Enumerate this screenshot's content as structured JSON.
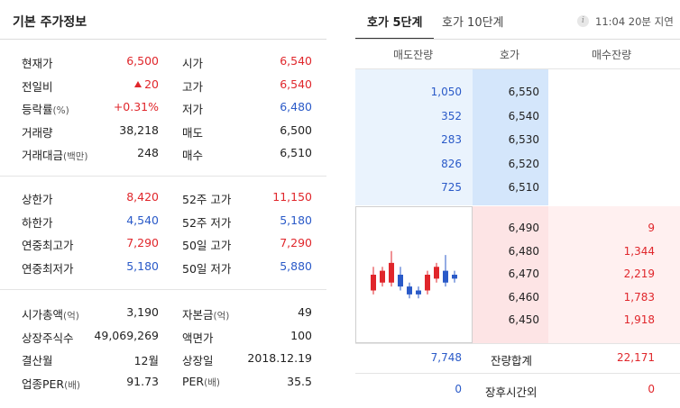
{
  "left_panel": {
    "title": "기본 주가정보",
    "section1": [
      {
        "label": "현재가",
        "label_unit": "",
        "value": "6,500",
        "value_color": "red",
        "label2": "시가",
        "label2_unit": "",
        "value2": "6,540",
        "value2_color": "red"
      },
      {
        "label": "전일비",
        "label_unit": "",
        "value": "20",
        "value_color": "red",
        "value_icon": "up-triangle-icon",
        "label2": "고가",
        "label2_unit": "",
        "value2": "6,540",
        "value2_color": "red"
      },
      {
        "label": "등락률",
        "label_unit": "(%)",
        "value": "+0.31%",
        "value_color": "red",
        "label2": "저가",
        "label2_unit": "",
        "value2": "6,480",
        "value2_color": "blue"
      },
      {
        "label": "거래량",
        "label_unit": "",
        "value": "38,218",
        "value_color": "black",
        "label2": "매도",
        "label2_unit": "",
        "value2": "6,500",
        "value2_color": "black"
      },
      {
        "label": "거래대금",
        "label_unit": "(백만)",
        "value": "248",
        "value_color": "black",
        "label2": "매수",
        "label2_unit": "",
        "value2": "6,510",
        "value2_color": "black"
      }
    ],
    "section2": [
      {
        "label": "상한가",
        "label_unit": "",
        "value": "8,420",
        "value_color": "red",
        "label2": "52주 고가",
        "label2_unit": "",
        "value2": "11,150",
        "value2_color": "red"
      },
      {
        "label": "하한가",
        "label_unit": "",
        "value": "4,540",
        "value_color": "blue",
        "label2": "52주 저가",
        "label2_unit": "",
        "value2": "5,180",
        "value2_color": "blue"
      },
      {
        "label": "연중최고가",
        "label_unit": "",
        "value": "7,290",
        "value_color": "red",
        "label2": "50일 고가",
        "label2_unit": "",
        "value2": "7,290",
        "value2_color": "red"
      },
      {
        "label": "연중최저가",
        "label_unit": "",
        "value": "5,180",
        "value_color": "blue",
        "label2": "50일 저가",
        "label2_unit": "",
        "value2": "5,880",
        "value2_color": "blue"
      }
    ],
    "section3": [
      {
        "label": "시가총액",
        "label_unit": "(억)",
        "value": "3,190",
        "value_color": "black",
        "label2": "자본금",
        "label2_unit": "(억)",
        "value2": "49",
        "value2_color": "black"
      },
      {
        "label": "상장주식수",
        "label_unit": "",
        "value": "49,069,269",
        "value_color": "black",
        "label2": "액면가",
        "label2_unit": "",
        "value2": "100",
        "value2_color": "black"
      },
      {
        "label": "결산월",
        "label_unit": "",
        "value": "12월",
        "value_color": "black",
        "label2": "상장일",
        "label2_unit": "",
        "value2": "2018.12.19",
        "value2_color": "black"
      },
      {
        "label": "업종PER",
        "label_unit": "(배)",
        "value": "91.73",
        "value_color": "black",
        "label2": "PER",
        "label2_unit": "(배)",
        "value2": "35.5",
        "value2_color": "black"
      }
    ]
  },
  "right_panel": {
    "tabs": [
      {
        "label": "호가 5단계",
        "active": true
      },
      {
        "label": "호가 10단계",
        "active": false
      }
    ],
    "info_icon": "i",
    "time_label": "11:04 20분 지연",
    "columns": [
      "매도잔량",
      "호가",
      "매수잔량"
    ],
    "asks": [
      {
        "qty": "1,050",
        "price": "6,550"
      },
      {
        "qty": "352",
        "price": "6,540"
      },
      {
        "qty": "283",
        "price": "6,530"
      },
      {
        "qty": "826",
        "price": "6,520"
      },
      {
        "qty": "725",
        "price": "6,510"
      }
    ],
    "bids": [
      {
        "price": "6,490",
        "qty": "9"
      },
      {
        "price": "6,480",
        "qty": "1,344"
      },
      {
        "price": "6,470",
        "qty": "2,219"
      },
      {
        "price": "6,460",
        "qty": "1,783"
      },
      {
        "price": "6,450",
        "qty": "1,918"
      }
    ],
    "total": {
      "ask": "7,748",
      "label": "잔량합계",
      "bid": "22,171"
    },
    "after_hours": {
      "ask": "0",
      "label": "장후시간외",
      "bid": "0"
    },
    "mini_chart": {
      "type": "candlestick",
      "candles": [
        {
          "o": 6520,
          "c": 6480,
          "h": 6540,
          "l": 6470,
          "color": "red"
        },
        {
          "o": 6500,
          "c": 6530,
          "h": 6540,
          "l": 6490,
          "color": "red"
        },
        {
          "o": 6500,
          "c": 6550,
          "h": 6580,
          "l": 6490,
          "color": "red"
        },
        {
          "o": 6520,
          "c": 6490,
          "h": 6540,
          "l": 6480,
          "color": "blue"
        },
        {
          "o": 6490,
          "c": 6470,
          "h": 6500,
          "l": 6460,
          "color": "blue"
        },
        {
          "o": 6480,
          "c": 6470,
          "h": 6490,
          "l": 6460,
          "color": "blue"
        },
        {
          "o": 6480,
          "c": 6520,
          "h": 6530,
          "l": 6470,
          "color": "red"
        },
        {
          "o": 6510,
          "c": 6540,
          "h": 6550,
          "l": 6500,
          "color": "red"
        },
        {
          "o": 6530,
          "c": 6500,
          "h": 6570,
          "l": 6490,
          "color": "blue"
        },
        {
          "o": 6520,
          "c": 6510,
          "h": 6530,
          "l": 6500,
          "color": "blue"
        }
      ],
      "price_range": [
        6440,
        6600
      ]
    },
    "colors": {
      "ask_bg": "#eaf3fd",
      "ask_price_bg": "#d4e6fb",
      "bid_price_bg": "#fde4e5",
      "bid_bg": "#fff0f0",
      "up": "#e0262b",
      "down": "#2a5ac8"
    }
  }
}
